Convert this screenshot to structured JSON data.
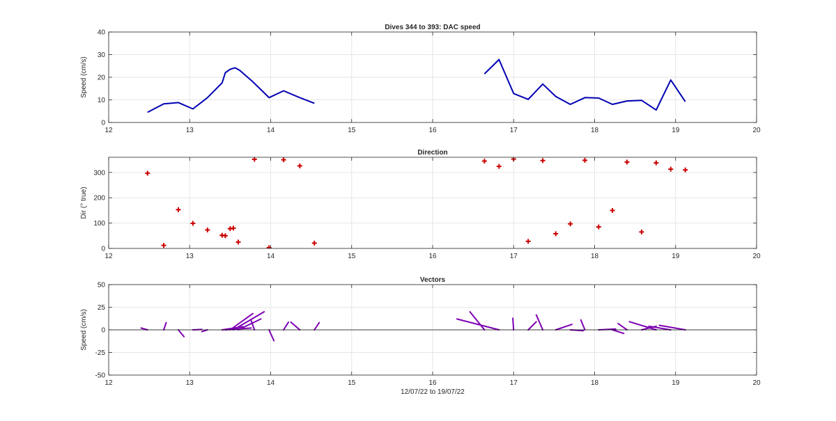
{
  "colors": {
    "speed": "#0000b3",
    "direction": "#cc0000",
    "vectors": "#7e00b3",
    "zero_line": "#000000"
  },
  "chart_data": [
    {
      "type": "line",
      "title": "Dives 344 to 393: DAC speed",
      "xlabel": "",
      "ylabel": "Speed (cm/s)",
      "xlim": [
        12,
        20
      ],
      "ylim": [
        0,
        40
      ],
      "xticks": [
        "12",
        "13",
        "14",
        "15",
        "16",
        "17",
        "18",
        "19",
        "20"
      ],
      "yticks": [
        "0",
        "10",
        "20",
        "30",
        "40"
      ],
      "grid": true,
      "series": [
        {
          "segments": [
            {
              "x": [
                12.48,
                12.68,
                12.86,
                13.04,
                13.22,
                13.4,
                13.44,
                13.5,
                13.56,
                13.62,
                13.78,
                13.98,
                14.16,
                14.36,
                14.54
              ],
              "y": [
                4.5,
                8.2,
                8.8,
                6.0,
                11.0,
                17.5,
                22.0,
                23.5,
                24.2,
                23.0,
                18.0,
                11.0,
                14.0,
                11.0,
                8.5
              ]
            },
            {
              "x": [
                16.64,
                16.82,
                17.0,
                17.18,
                17.36,
                17.52,
                17.7,
                17.88,
                18.05,
                18.22,
                18.4,
                18.58,
                18.76,
                18.94,
                19.12
              ],
              "y": [
                21.5,
                27.8,
                12.8,
                10.2,
                17.0,
                11.5,
                8.0,
                11.0,
                10.8,
                8.0,
                9.5,
                9.8,
                5.5,
                18.8,
                9.2
              ]
            }
          ]
        }
      ]
    },
    {
      "type": "scatter",
      "title": "Direction",
      "xlabel": "",
      "ylabel": "Dir (° true)",
      "xlim": [
        12,
        20
      ],
      "ylim": [
        0,
        360
      ],
      "xticks": [
        "12",
        "13",
        "14",
        "15",
        "16",
        "17",
        "18",
        "19",
        "20"
      ],
      "yticks": [
        "0",
        "100",
        "200",
        "300"
      ],
      "grid": true,
      "marker": "+",
      "x": [
        12.48,
        12.68,
        12.86,
        13.04,
        13.22,
        13.4,
        13.44,
        13.5,
        13.54,
        13.6,
        13.8,
        13.98,
        14.16,
        14.36,
        14.54,
        16.64,
        16.82,
        17.0,
        17.18,
        17.36,
        17.52,
        17.7,
        17.88,
        18.05,
        18.22,
        18.4,
        18.58,
        18.76,
        18.94,
        19.12
      ],
      "y": [
        297,
        12,
        153,
        99,
        73,
        52,
        50,
        78,
        80,
        25,
        352,
        3,
        350,
        326,
        21,
        345,
        324,
        353,
        28,
        347,
        58,
        97,
        348,
        85,
        150,
        341,
        65,
        338,
        313,
        310
      ]
    },
    {
      "type": "line",
      "title": "Vectors",
      "xlabel": "12/07/22 to 19/07/22",
      "ylabel": "Speed (cm/s)",
      "xlim": [
        12,
        20
      ],
      "ylim": [
        -50,
        50
      ],
      "xticks": [
        "12",
        "13",
        "14",
        "15",
        "16",
        "17",
        "18",
        "19",
        "20"
      ],
      "yticks": [
        "-50",
        "-25",
        "0",
        "25",
        "50"
      ],
      "grid": true,
      "vectors": [
        {
          "x": 12.48,
          "u": -4.0,
          "v": 2.0
        },
        {
          "x": 12.68,
          "u": 1.5,
          "v": 8.0
        },
        {
          "x": 12.86,
          "u": 3.5,
          "v": -7.5
        },
        {
          "x": 13.04,
          "u": 5.5,
          "v": 0.5
        },
        {
          "x": 13.22,
          "u": -3.5,
          "v": -2.0
        },
        {
          "x": 13.4,
          "u": 13.0,
          "v": 3.5
        },
        {
          "x": 13.44,
          "u": 16.0,
          "v": 2.0
        },
        {
          "x": 13.5,
          "u": 14.0,
          "v": 18.0
        },
        {
          "x": 13.54,
          "u": 19.0,
          "v": 20.0
        },
        {
          "x": 13.6,
          "u": 14.0,
          "v": 12.0
        },
        {
          "x": 13.8,
          "u": -2.0,
          "v": 10.0
        },
        {
          "x": 13.98,
          "u": 3.0,
          "v": -12.0
        },
        {
          "x": 14.16,
          "u": 3.0,
          "v": 8.5
        },
        {
          "x": 14.36,
          "u": -5.5,
          "v": 8.5
        },
        {
          "x": 14.54,
          "u": 3.0,
          "v": 8.0
        },
        {
          "x": 16.64,
          "u": -9.0,
          "v": 20.0
        },
        {
          "x": 16.82,
          "u": -26.0,
          "v": 12.0
        },
        {
          "x": 17.0,
          "u": -0.5,
          "v": 12.8
        },
        {
          "x": 17.18,
          "u": 5.0,
          "v": 9.0
        },
        {
          "x": 17.36,
          "u": -4.0,
          "v": 16.5
        },
        {
          "x": 17.52,
          "u": 10.0,
          "v": 6.0
        },
        {
          "x": 17.7,
          "u": 8.0,
          "v": -1.0
        },
        {
          "x": 17.88,
          "u": -2.5,
          "v": 11.0
        },
        {
          "x": 18.05,
          "u": 10.5,
          "v": 1.0
        },
        {
          "x": 18.22,
          "u": 7.0,
          "v": -4.0
        },
        {
          "x": 18.4,
          "u": -5.5,
          "v": 7.0
        },
        {
          "x": 18.58,
          "u": 9.0,
          "v": 4.0
        },
        {
          "x": 18.76,
          "u": -16.5,
          "v": 9.0
        },
        {
          "x": 18.94,
          "u": -13.5,
          "v": 4.0
        },
        {
          "x": 19.12,
          "u": -16.0,
          "v": 5.0
        }
      ]
    }
  ]
}
